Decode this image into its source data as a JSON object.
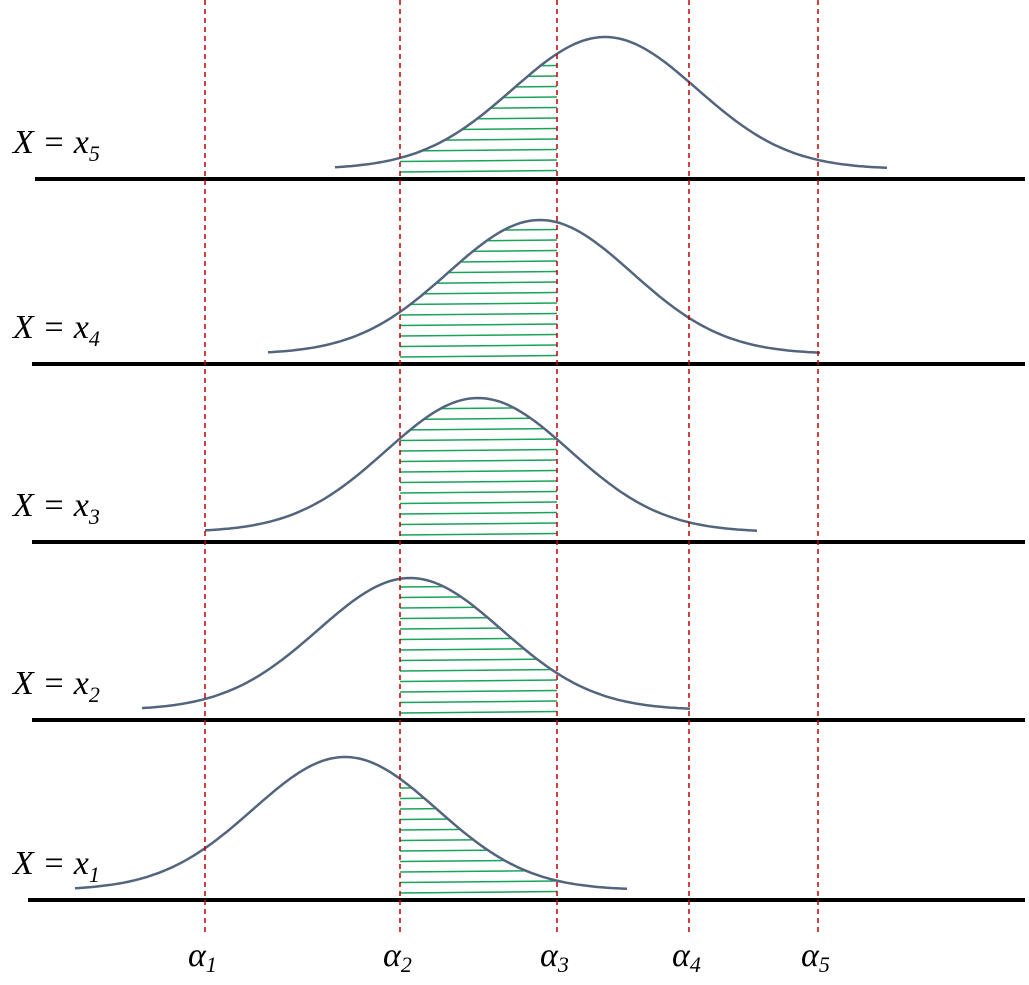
{
  "rows": [
    {
      "label": "X = x",
      "subscript": "5"
    },
    {
      "label": "X = x",
      "subscript": "4"
    },
    {
      "label": "X = x",
      "subscript": "3"
    },
    {
      "label": "X = x",
      "subscript": "2"
    },
    {
      "label": "X = x",
      "subscript": "1"
    }
  ],
  "thresholds": [
    {
      "symbol": "α",
      "subscript": "1"
    },
    {
      "symbol": "α",
      "subscript": "2"
    },
    {
      "symbol": "α",
      "subscript": "3"
    },
    {
      "symbol": "α",
      "subscript": "4"
    },
    {
      "symbol": "α",
      "subscript": "5"
    }
  ]
}
